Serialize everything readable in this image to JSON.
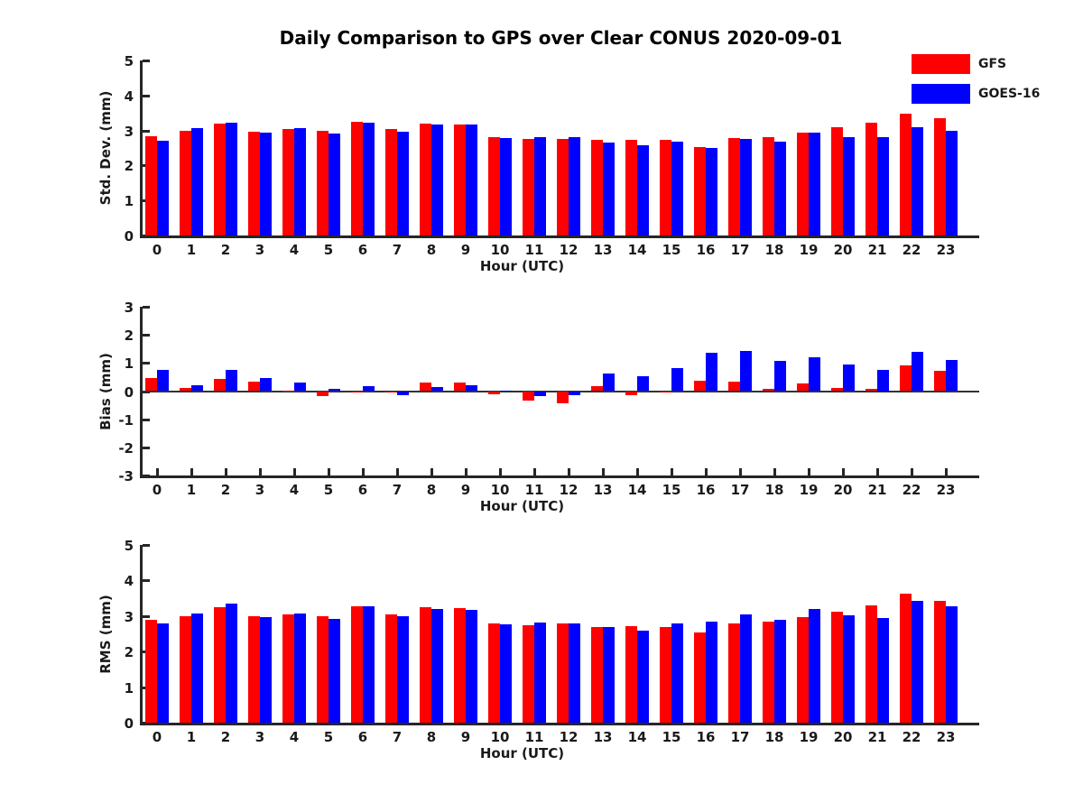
{
  "title": "Daily Comparison to GPS over Clear CONUS 2020-09-01",
  "legend": [
    {
      "label": "GFS",
      "color": "#ff0000"
    },
    {
      "label": "GOES-16",
      "color": "#0000ff"
    }
  ],
  "colors": {
    "gfs": "#ff0000",
    "goes16": "#0000ff",
    "axis": "#262626",
    "text": "#1a1a1a"
  },
  "chart_data": [
    {
      "type": "bar",
      "title": "Daily Comparison to GPS over Clear CONUS 2020-09-01",
      "ylabel": "Std. Dev. (mm)",
      "xlabel": "Hour (UTC)",
      "ylim": [
        0,
        5
      ],
      "yticks": [
        0,
        1,
        2,
        3,
        4,
        5
      ],
      "grid": false,
      "legend_position": "outside upper right",
      "categories": [
        "0",
        "1",
        "2",
        "3",
        "4",
        "5",
        "6",
        "7",
        "8",
        "9",
        "10",
        "11",
        "12",
        "13",
        "14",
        "15",
        "16",
        "17",
        "18",
        "19",
        "20",
        "21",
        "22",
        "23"
      ],
      "series": [
        {
          "name": "GFS",
          "color": "#ff0000",
          "values": [
            2.83,
            3.0,
            3.2,
            2.97,
            3.04,
            3.0,
            3.25,
            3.05,
            3.2,
            3.17,
            2.82,
            2.77,
            2.77,
            2.72,
            2.74,
            2.73,
            2.53,
            2.79,
            2.82,
            2.95,
            3.08,
            3.22,
            3.47,
            3.35
          ]
        },
        {
          "name": "GOES-16",
          "color": "#0000ff",
          "values": [
            2.7,
            3.07,
            3.23,
            2.93,
            3.06,
            2.91,
            3.23,
            2.97,
            3.17,
            3.17,
            2.79,
            2.82,
            2.82,
            2.65,
            2.59,
            2.69,
            2.49,
            2.75,
            2.67,
            2.93,
            2.8,
            2.8,
            3.1,
            3.0
          ]
        }
      ]
    },
    {
      "type": "bar",
      "title": "",
      "ylabel": "Bias (mm)",
      "xlabel": "Hour (UTC)",
      "ylim": [
        -3,
        3
      ],
      "yticks": [
        -3,
        -2,
        -1,
        0,
        1,
        2,
        3
      ],
      "grid": false,
      "zero_line": true,
      "categories": [
        "0",
        "1",
        "2",
        "3",
        "4",
        "5",
        "6",
        "7",
        "8",
        "9",
        "10",
        "11",
        "12",
        "13",
        "14",
        "15",
        "16",
        "17",
        "18",
        "19",
        "20",
        "21",
        "22",
        "23"
      ],
      "series": [
        {
          "name": "GFS",
          "color": "#ff0000",
          "values": [
            0.45,
            0.1,
            0.43,
            0.34,
            0.02,
            -0.18,
            -0.03,
            -0.02,
            0.29,
            0.31,
            -0.1,
            -0.33,
            -0.42,
            0.17,
            -0.13,
            -0.03,
            0.38,
            0.35,
            0.07,
            0.27,
            0.1,
            0.09,
            0.9,
            0.72
          ]
        },
        {
          "name": "GOES-16",
          "color": "#0000ff",
          "values": [
            0.77,
            0.21,
            0.77,
            0.45,
            0.31,
            0.07,
            0.18,
            -0.15,
            0.16,
            0.22,
            0.02,
            -0.18,
            -0.15,
            0.61,
            0.52,
            0.82,
            1.35,
            1.42,
            1.06,
            1.21,
            0.95,
            0.75,
            1.4,
            1.12
          ]
        }
      ]
    },
    {
      "type": "bar",
      "title": "",
      "ylabel": "RMS (mm)",
      "xlabel": "Hour (UTC)",
      "ylim": [
        0,
        5
      ],
      "yticks": [
        0,
        1,
        2,
        3,
        4,
        5
      ],
      "grid": false,
      "categories": [
        "0",
        "1",
        "2",
        "3",
        "4",
        "5",
        "6",
        "7",
        "8",
        "9",
        "10",
        "11",
        "12",
        "13",
        "14",
        "15",
        "16",
        "17",
        "18",
        "19",
        "20",
        "21",
        "22",
        "23"
      ],
      "series": [
        {
          "name": "GFS",
          "color": "#ff0000",
          "values": [
            2.89,
            2.99,
            3.24,
            3.0,
            3.04,
            3.0,
            3.27,
            3.05,
            3.25,
            3.22,
            2.78,
            2.75,
            2.79,
            2.68,
            2.72,
            2.7,
            2.53,
            2.79,
            2.84,
            2.98,
            3.12,
            3.29,
            3.62,
            3.42
          ]
        },
        {
          "name": "GOES-16",
          "color": "#0000ff",
          "values": [
            2.8,
            3.08,
            3.34,
            2.97,
            3.08,
            2.91,
            3.27,
            2.99,
            3.2,
            3.18,
            2.76,
            2.82,
            2.79,
            2.68,
            2.6,
            2.78,
            2.84,
            3.05,
            2.9,
            3.19,
            3.02,
            2.94,
            3.42,
            3.27
          ]
        }
      ]
    }
  ]
}
